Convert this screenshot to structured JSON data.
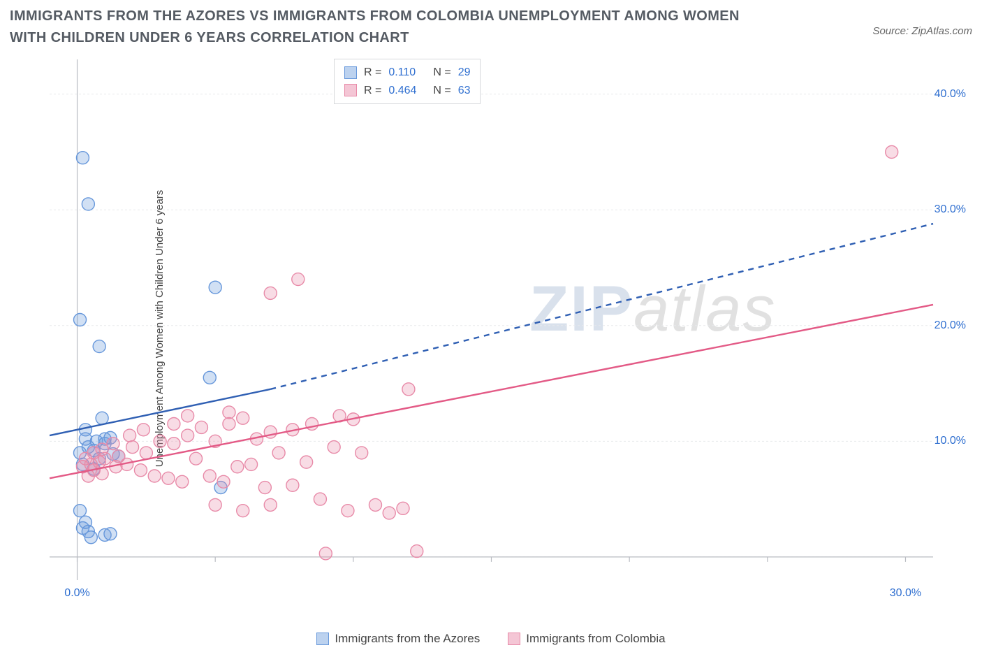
{
  "title": "IMMIGRANTS FROM THE AZORES VS IMMIGRANTS FROM COLOMBIA UNEMPLOYMENT AMONG WOMEN WITH CHILDREN UNDER 6 YEARS CORRELATION CHART",
  "source": "Source: ZipAtlas.com",
  "ylabel": "Unemployment Among Women with Children Under 6 years",
  "watermark": {
    "zip": "ZIP",
    "atlas": "atlas"
  },
  "chart": {
    "type": "scatter",
    "background_color": "#ffffff",
    "grid_color": "#e8e9ec",
    "axis_color": "#b9bcc2",
    "xlim": [
      -1,
      31
    ],
    "ylim": [
      -2,
      43
    ],
    "xtick_step": 5,
    "xtick_labels": [
      {
        "v": 0,
        "t": "0.0%"
      },
      {
        "v": 30,
        "t": "30.0%"
      }
    ],
    "ytick_labels": [
      {
        "v": 10,
        "t": "10.0%"
      },
      {
        "v": 20,
        "t": "20.0%"
      },
      {
        "v": 30,
        "t": "30.0%"
      },
      {
        "v": 40,
        "t": "40.0%"
      }
    ],
    "grid_y": [
      0,
      10,
      20,
      30,
      40
    ],
    "grid_x": [
      0,
      5,
      10,
      15,
      20,
      25,
      30
    ],
    "marker_radius": 9,
    "marker_stroke_width": 1.4,
    "marker_fill_opacity": 0.3,
    "line_stroke_width": 2.4,
    "series": [
      {
        "key": "azores",
        "label": "Immigrants from the Azores",
        "color": "#6697db",
        "line_color": "#2f5fb3",
        "swatch_fill": "#bcd2ef",
        "swatch_border": "#6697db",
        "R": "0.110",
        "N": "29",
        "trend": {
          "solid": [
            [
              -1,
              10.5
            ],
            [
              7,
              14.5
            ]
          ],
          "dashed": [
            [
              7,
              14.5
            ],
            [
              31,
              28.8
            ]
          ]
        },
        "points": [
          [
            0.2,
            34.5
          ],
          [
            0.4,
            30.5
          ],
          [
            0.1,
            20.5
          ],
          [
            0.8,
            18.2
          ],
          [
            0.3,
            10.2
          ],
          [
            0.1,
            9.0
          ],
          [
            0.4,
            9.5
          ],
          [
            0.7,
            10.0
          ],
          [
            1.0,
            9.8
          ],
          [
            1.2,
            10.3
          ],
          [
            1.3,
            8.9
          ],
          [
            0.2,
            8.0
          ],
          [
            0.6,
            7.6
          ],
          [
            1.5,
            8.7
          ],
          [
            0.9,
            12.0
          ],
          [
            5.0,
            23.3
          ],
          [
            4.8,
            15.5
          ],
          [
            5.2,
            6.0
          ],
          [
            0.1,
            4.0
          ],
          [
            0.4,
            2.2
          ],
          [
            1.0,
            1.9
          ],
          [
            0.3,
            3.0
          ],
          [
            0.2,
            2.5
          ],
          [
            0.5,
            1.7
          ],
          [
            1.2,
            2.0
          ],
          [
            1.0,
            10.2
          ],
          [
            0.6,
            9.2
          ],
          [
            0.8,
            8.5
          ],
          [
            0.3,
            11.0
          ]
        ]
      },
      {
        "key": "colombia",
        "label": "Immigrants from Colombia",
        "color": "#e88aa8",
        "line_color": "#e35a86",
        "swatch_fill": "#f4c6d5",
        "swatch_border": "#e88aa8",
        "R": "0.464",
        "N": "63",
        "trend": {
          "solid": [
            [
              -1,
              6.8
            ],
            [
              31,
              21.8
            ]
          ]
        },
        "points": [
          [
            29.5,
            35.0
          ],
          [
            8.0,
            24.0
          ],
          [
            7.0,
            22.8
          ],
          [
            12.0,
            14.5
          ],
          [
            9.5,
            12.2
          ],
          [
            10.0,
            11.9
          ],
          [
            8.5,
            11.5
          ],
          [
            7.8,
            11.0
          ],
          [
            7.0,
            10.8
          ],
          [
            6.5,
            10.2
          ],
          [
            6.0,
            12.0
          ],
          [
            5.5,
            11.5
          ],
          [
            5.0,
            10.0
          ],
          [
            4.5,
            11.2
          ],
          [
            4.0,
            10.5
          ],
          [
            3.5,
            9.8
          ],
          [
            3.0,
            10.0
          ],
          [
            2.5,
            9.0
          ],
          [
            2.0,
            9.5
          ],
          [
            1.5,
            8.7
          ],
          [
            1.0,
            8.5
          ],
          [
            0.8,
            8.2
          ],
          [
            0.5,
            8.0
          ],
          [
            0.3,
            8.5
          ],
          [
            0.2,
            7.8
          ],
          [
            0.6,
            9.0
          ],
          [
            0.9,
            9.3
          ],
          [
            1.3,
            9.8
          ],
          [
            1.8,
            8.0
          ],
          [
            2.3,
            7.5
          ],
          [
            2.8,
            7.0
          ],
          [
            3.3,
            6.8
          ],
          [
            3.8,
            6.5
          ],
          [
            4.3,
            8.5
          ],
          [
            4.8,
            7.0
          ],
          [
            5.3,
            6.5
          ],
          [
            5.8,
            7.8
          ],
          [
            6.3,
            8.0
          ],
          [
            6.8,
            6.0
          ],
          [
            7.3,
            9.0
          ],
          [
            7.8,
            6.2
          ],
          [
            8.3,
            8.2
          ],
          [
            8.8,
            5.0
          ],
          [
            9.3,
            9.5
          ],
          [
            9.8,
            4.0
          ],
          [
            10.3,
            9.0
          ],
          [
            10.8,
            4.5
          ],
          [
            11.3,
            3.8
          ],
          [
            11.8,
            4.2
          ],
          [
            5.0,
            4.5
          ],
          [
            6.0,
            4.0
          ],
          [
            7.0,
            4.5
          ],
          [
            9.0,
            0.3
          ],
          [
            12.3,
            0.5
          ],
          [
            3.5,
            11.5
          ],
          [
            4.0,
            12.2
          ],
          [
            0.4,
            7.0
          ],
          [
            0.6,
            7.5
          ],
          [
            0.9,
            7.2
          ],
          [
            1.4,
            7.8
          ],
          [
            1.9,
            10.5
          ],
          [
            2.4,
            11.0
          ],
          [
            5.5,
            12.5
          ]
        ]
      }
    ]
  },
  "stats_box": {
    "rows": [
      {
        "series": "azores",
        "R": "0.110",
        "N": "29"
      },
      {
        "series": "colombia",
        "R": "0.464",
        "N": "63"
      }
    ]
  },
  "colors": {
    "title": "#555b63",
    "axis_label": "#444444",
    "tick_label": "#2f6fd0"
  },
  "fonts": {
    "title_size": 20,
    "label_size": 15,
    "tick_size": 16,
    "legend_size": 17
  }
}
